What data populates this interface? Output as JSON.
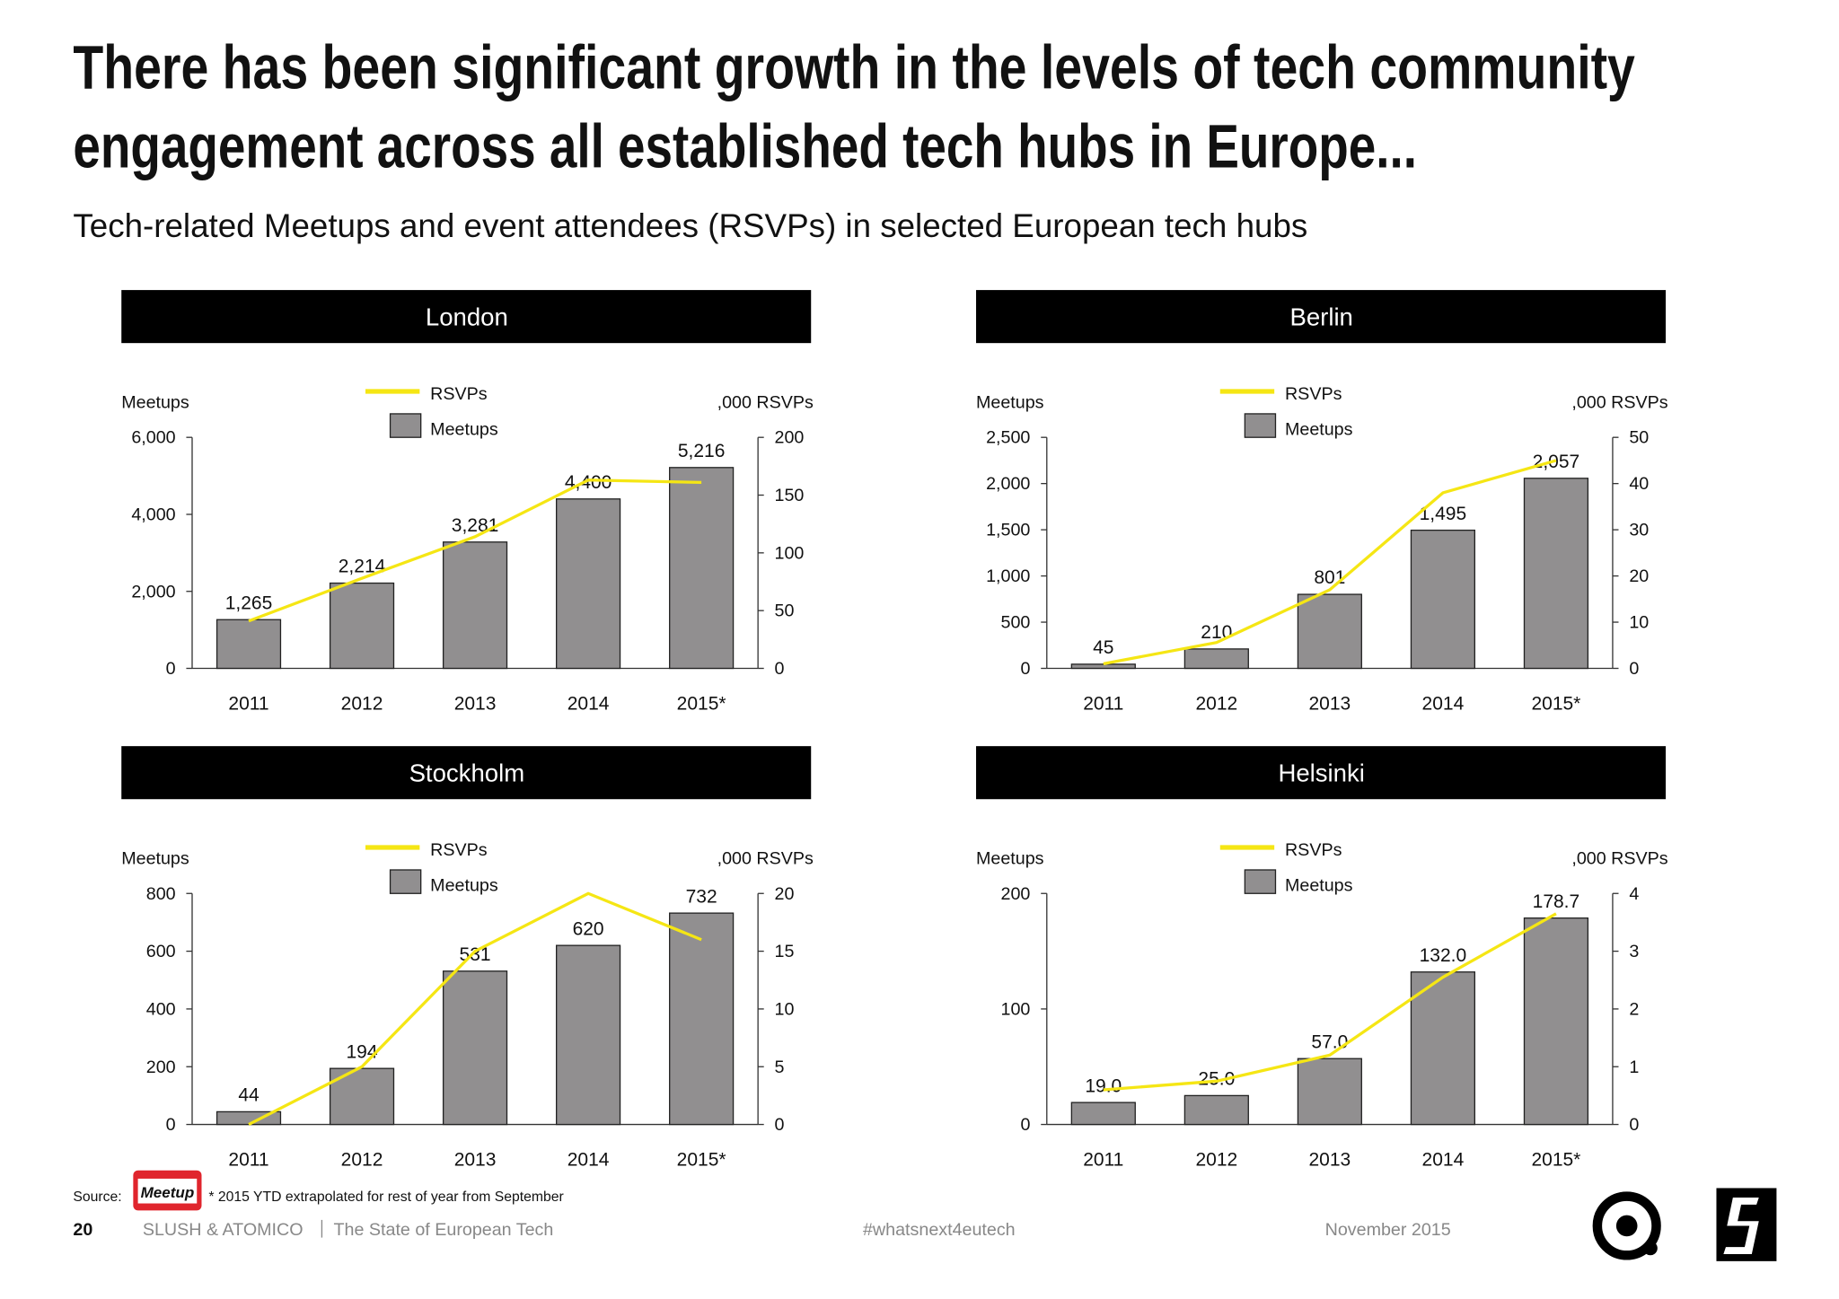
{
  "title_lines": [
    "There has been significant growth in the levels of tech community",
    "engagement across all established tech hubs in Europe..."
  ],
  "subtitle": "Tech-related Meetups and event attendees (RSVPs) in selected European tech hubs",
  "chart_data": [
    {
      "type": "combo",
      "title": "London",
      "y_label": "Meetups",
      "y2_label": ",000 RSVPs",
      "categories": [
        "2011",
        "2012",
        "2013",
        "2014",
        "2015*"
      ],
      "series": [
        {
          "name": "RSVPs",
          "color": "#f5e614",
          "kind": "line",
          "axis": "y2",
          "values": [
            41,
            78,
            114,
            163,
            161
          ]
        },
        {
          "name": "Meetups",
          "color": "#918f90",
          "kind": "bar",
          "values": [
            1265,
            2214,
            3281,
            4400,
            5216
          ],
          "value_labels": [
            "1,265",
            "2,214",
            "3,281",
            "4,400",
            "5,216"
          ]
        }
      ],
      "ylim": [
        0,
        6000
      ],
      "yticks": [
        0,
        {
          "value": 2000,
          "label": "2,000"
        },
        {
          "value": 4000,
          "label": "4,000"
        },
        {
          "value": 6000,
          "label": "6,000"
        }
      ],
      "y2lim": [
        0,
        200
      ],
      "y2ticks": [
        0,
        50,
        100,
        150,
        200
      ]
    },
    {
      "type": "combo",
      "title": "Berlin",
      "y_label": "Meetups",
      "y2_label": ",000 RSVPs",
      "categories": [
        "2011",
        "2012",
        "2013",
        "2014",
        "2015*"
      ],
      "series": [
        {
          "name": "RSVPs",
          "color": "#f5e614",
          "kind": "line",
          "axis": "y2",
          "values": [
            1,
            5.6,
            17,
            38,
            45
          ]
        },
        {
          "name": "Meetups",
          "color": "#918f90",
          "kind": "bar",
          "values": [
            45,
            210,
            801,
            1495,
            2057
          ],
          "value_labels": [
            "45",
            "210",
            "801",
            "1,495",
            "2,057"
          ]
        }
      ],
      "ylim": [
        0,
        2500
      ],
      "yticks": [
        0,
        500,
        {
          "value": 1000,
          "label": "1,000"
        },
        {
          "value": 1500,
          "label": "1,500"
        },
        {
          "value": 2000,
          "label": "2,000"
        },
        {
          "value": 2500,
          "label": "2,500"
        }
      ],
      "y2lim": [
        0,
        50
      ],
      "y2ticks": [
        0,
        10,
        20,
        30,
        40,
        50
      ]
    },
    {
      "type": "combo",
      "title": "Stockholm",
      "y_label": "Meetups",
      "y2_label": ",000 RSVPs",
      "categories": [
        "2011",
        "2012",
        "2013",
        "2014",
        "2015*"
      ],
      "series": [
        {
          "name": "RSVPs",
          "color": "#f5e614",
          "kind": "line",
          "axis": "y2",
          "values": [
            0,
            5,
            15,
            20,
            16
          ]
        },
        {
          "name": "Meetups",
          "color": "#918f90",
          "kind": "bar",
          "values": [
            44,
            194,
            531,
            620,
            732
          ]
        }
      ],
      "ylim": [
        0,
        800
      ],
      "yticks": [
        0,
        200,
        400,
        600,
        800
      ],
      "y2lim": [
        0,
        20
      ],
      "y2ticks": [
        0,
        5,
        10,
        15,
        20
      ]
    },
    {
      "type": "combo",
      "title": "Helsinki",
      "y_label": "Meetups",
      "y2_label": ",000 RSVPs",
      "categories": [
        "2011",
        "2012",
        "2013",
        "2014",
        "2015*"
      ],
      "series": [
        {
          "name": "RSVPs",
          "color": "#f5e614",
          "kind": "line",
          "axis": "y2",
          "values": [
            0.6,
            0.75,
            1.2,
            2.55,
            3.65
          ]
        },
        {
          "name": "Meetups",
          "color": "#918f90",
          "kind": "bar",
          "values": [
            19,
            25,
            57,
            132,
            178.7
          ],
          "value_labels": [
            "19.0",
            "25.0",
            "57.0",
            "132.0",
            "178.7"
          ]
        }
      ],
      "ylim": [
        0,
        200
      ],
      "yticks": [
        0,
        100,
        200
      ],
      "y2lim": [
        0,
        4
      ],
      "y2ticks": [
        0,
        1,
        2,
        3,
        4
      ]
    }
  ],
  "footer": {
    "source": "Source:",
    "source_logo": "Meetup",
    "note": "* 2015 YTD extrapolated for rest of year from September",
    "page": "20",
    "org": "SLUSH & ATOMICO",
    "report": "The State of European Tech",
    "hashtag": "#whatsnext4eutech",
    "date": "November 2015"
  }
}
